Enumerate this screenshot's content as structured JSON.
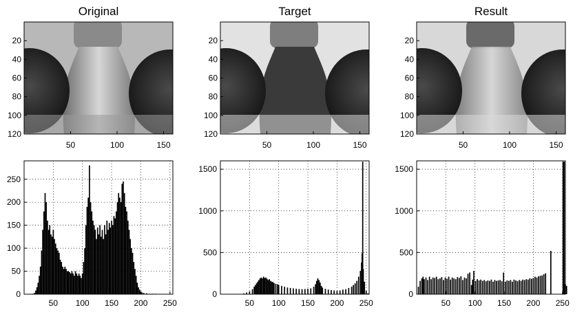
{
  "chart_data": [
    {
      "type": "image",
      "title": "Original",
      "image_size": [
        160,
        120
      ],
      "x_ticks": [
        50,
        100,
        150
      ],
      "y_ticks": [
        20,
        40,
        60,
        80,
        100,
        120
      ],
      "tone": "original"
    },
    {
      "type": "image",
      "title": "Target",
      "image_size": [
        160,
        120
      ],
      "x_ticks": [
        50,
        100,
        150
      ],
      "y_ticks": [
        20,
        40,
        60,
        80,
        100,
        120
      ],
      "tone": "target"
    },
    {
      "type": "image",
      "title": "Result",
      "image_size": [
        160,
        120
      ],
      "x_ticks": [
        50,
        100,
        150
      ],
      "y_ticks": [
        20,
        40,
        60,
        80,
        100,
        120
      ],
      "tone": "result"
    },
    {
      "type": "bar",
      "xlim": [
        0,
        255
      ],
      "ylim": [
        0,
        290
      ],
      "x_ticks": [
        50,
        100,
        150,
        200,
        250
      ],
      "y_ticks": [
        0,
        50,
        100,
        150,
        200,
        250
      ],
      "grid": true,
      "bins": [
        [
          15,
          1
        ],
        [
          18,
          3
        ],
        [
          20,
          8
        ],
        [
          22,
          15
        ],
        [
          24,
          25
        ],
        [
          26,
          40
        ],
        [
          28,
          60
        ],
        [
          30,
          95
        ],
        [
          32,
          140
        ],
        [
          34,
          180
        ],
        [
          36,
          220
        ],
        [
          38,
          200
        ],
        [
          40,
          160
        ],
        [
          42,
          140
        ],
        [
          44,
          150
        ],
        [
          46,
          130
        ],
        [
          48,
          125
        ],
        [
          50,
          140
        ],
        [
          52,
          120
        ],
        [
          54,
          110
        ],
        [
          56,
          100
        ],
        [
          58,
          95
        ],
        [
          60,
          90
        ],
        [
          62,
          75
        ],
        [
          64,
          70
        ],
        [
          66,
          60
        ],
        [
          68,
          55
        ],
        [
          70,
          60
        ],
        [
          72,
          55
        ],
        [
          74,
          50
        ],
        [
          76,
          50
        ],
        [
          78,
          48
        ],
        [
          80,
          45
        ],
        [
          82,
          50
        ],
        [
          84,
          45
        ],
        [
          86,
          40
        ],
        [
          88,
          50
        ],
        [
          90,
          45
        ],
        [
          92,
          40
        ],
        [
          94,
          45
        ],
        [
          96,
          40
        ],
        [
          98,
          35
        ],
        [
          100,
          45
        ],
        [
          102,
          70
        ],
        [
          104,
          100
        ],
        [
          106,
          150
        ],
        [
          108,
          190
        ],
        [
          110,
          210
        ],
        [
          112,
          280
        ],
        [
          114,
          200
        ],
        [
          116,
          180
        ],
        [
          118,
          160
        ],
        [
          120,
          150
        ],
        [
          122,
          140
        ],
        [
          124,
          120
        ],
        [
          126,
          145
        ],
        [
          128,
          130
        ],
        [
          130,
          150
        ],
        [
          132,
          125
        ],
        [
          134,
          140
        ],
        [
          136,
          120
        ],
        [
          138,
          150
        ],
        [
          140,
          130
        ],
        [
          142,
          160
        ],
        [
          144,
          140
        ],
        [
          146,
          155
        ],
        [
          148,
          145
        ],
        [
          150,
          160
        ],
        [
          152,
          150
        ],
        [
          154,
          170
        ],
        [
          156,
          165
        ],
        [
          158,
          180
        ],
        [
          160,
          200
        ],
        [
          162,
          220
        ],
        [
          164,
          210
        ],
        [
          166,
          200
        ],
        [
          168,
          240
        ],
        [
          170,
          245
        ],
        [
          172,
          220
        ],
        [
          174,
          190
        ],
        [
          176,
          180
        ],
        [
          178,
          160
        ],
        [
          180,
          140
        ],
        [
          182,
          120
        ],
        [
          184,
          100
        ],
        [
          186,
          90
        ],
        [
          188,
          70
        ],
        [
          190,
          55
        ],
        [
          192,
          40
        ],
        [
          194,
          25
        ],
        [
          196,
          15
        ],
        [
          198,
          10
        ],
        [
          200,
          6
        ],
        [
          202,
          4
        ],
        [
          205,
          3
        ],
        [
          210,
          2
        ],
        [
          215,
          1
        ],
        [
          220,
          1
        ],
        [
          225,
          1
        ]
      ]
    },
    {
      "type": "bar",
      "xlim": [
        0,
        255
      ],
      "ylim": [
        0,
        1600
      ],
      "x_ticks": [
        50,
        100,
        150,
        200,
        250
      ],
      "y_ticks": [
        0,
        500,
        1000,
        1500
      ],
      "grid": true,
      "bins": [
        [
          35,
          3
        ],
        [
          40,
          10
        ],
        [
          45,
          20
        ],
        [
          50,
          35
        ],
        [
          55,
          60
        ],
        [
          58,
          90
        ],
        [
          60,
          110
        ],
        [
          62,
          130
        ],
        [
          64,
          150
        ],
        [
          66,
          170
        ],
        [
          68,
          190
        ],
        [
          70,
          200
        ],
        [
          72,
          190
        ],
        [
          74,
          210
        ],
        [
          76,
          195
        ],
        [
          78,
          200
        ],
        [
          80,
          185
        ],
        [
          82,
          170
        ],
        [
          84,
          180
        ],
        [
          86,
          160
        ],
        [
          88,
          150
        ],
        [
          90,
          145
        ],
        [
          92,
          135
        ],
        [
          95,
          125
        ],
        [
          98,
          120
        ],
        [
          100,
          110
        ],
        [
          105,
          100
        ],
        [
          110,
          90
        ],
        [
          115,
          80
        ],
        [
          120,
          75
        ],
        [
          125,
          70
        ],
        [
          130,
          65
        ],
        [
          135,
          62
        ],
        [
          140,
          60
        ],
        [
          145,
          62
        ],
        [
          150,
          65
        ],
        [
          155,
          70
        ],
        [
          160,
          90
        ],
        [
          163,
          120
        ],
        [
          165,
          160
        ],
        [
          167,
          190
        ],
        [
          169,
          170
        ],
        [
          171,
          140
        ],
        [
          173,
          100
        ],
        [
          175,
          80
        ],
        [
          180,
          65
        ],
        [
          185,
          55
        ],
        [
          190,
          50
        ],
        [
          195,
          45
        ],
        [
          200,
          40
        ],
        [
          205,
          45
        ],
        [
          210,
          55
        ],
        [
          215,
          60
        ],
        [
          220,
          75
        ],
        [
          225,
          90
        ],
        [
          228,
          110
        ],
        [
          231,
          130
        ],
        [
          234,
          160
        ],
        [
          237,
          210
        ],
        [
          240,
          280
        ],
        [
          242,
          380
        ],
        [
          243,
          490
        ],
        [
          244,
          1590
        ],
        [
          245,
          300
        ],
        [
          247,
          150
        ],
        [
          250,
          40
        ],
        [
          253,
          10
        ]
      ]
    },
    {
      "type": "bar",
      "xlim": [
        0,
        255
      ],
      "ylim": [
        0,
        1600
      ],
      "x_ticks": [
        50,
        100,
        150,
        200,
        250
      ],
      "y_ticks": [
        0,
        500,
        1000,
        1500
      ],
      "grid": true,
      "bins": [
        [
          3,
          90
        ],
        [
          6,
          160
        ],
        [
          9,
          190
        ],
        [
          11,
          210
        ],
        [
          13,
          180
        ],
        [
          16,
          200
        ],
        [
          19,
          170
        ],
        [
          22,
          210
        ],
        [
          25,
          180
        ],
        [
          28,
          200
        ],
        [
          31,
          195
        ],
        [
          34,
          210
        ],
        [
          37,
          180
        ],
        [
          40,
          190
        ],
        [
          43,
          205
        ],
        [
          46,
          170
        ],
        [
          49,
          200
        ],
        [
          52,
          185
        ],
        [
          55,
          210
        ],
        [
          58,
          175
        ],
        [
          61,
          200
        ],
        [
          64,
          190
        ],
        [
          67,
          180
        ],
        [
          70,
          205
        ],
        [
          73,
          195
        ],
        [
          76,
          215
        ],
        [
          79,
          170
        ],
        [
          82,
          200
        ],
        [
          85,
          190
        ],
        [
          88,
          245
        ],
        [
          91,
          260
        ],
        [
          94,
          110
        ],
        [
          96,
          175
        ],
        [
          98,
          280
        ],
        [
          101,
          160
        ],
        [
          104,
          180
        ],
        [
          107,
          165
        ],
        [
          110,
          175
        ],
        [
          113,
          160
        ],
        [
          116,
          170
        ],
        [
          119,
          155
        ],
        [
          122,
          165
        ],
        [
          125,
          160
        ],
        [
          128,
          175
        ],
        [
          131,
          150
        ],
        [
          134,
          170
        ],
        [
          137,
          160
        ],
        [
          140,
          165
        ],
        [
          143,
          170
        ],
        [
          146,
          155
        ],
        [
          149,
          260
        ],
        [
          152,
          150
        ],
        [
          155,
          165
        ],
        [
          158,
          160
        ],
        [
          161,
          170
        ],
        [
          164,
          150
        ],
        [
          167,
          175
        ],
        [
          170,
          165
        ],
        [
          173,
          155
        ],
        [
          176,
          170
        ],
        [
          179,
          160
        ],
        [
          182,
          175
        ],
        [
          185,
          170
        ],
        [
          188,
          180
        ],
        [
          191,
          175
        ],
        [
          194,
          190
        ],
        [
          197,
          185
        ],
        [
          200,
          195
        ],
        [
          203,
          210
        ],
        [
          206,
          200
        ],
        [
          209,
          215
        ],
        [
          212,
          220
        ],
        [
          215,
          225
        ],
        [
          218,
          240
        ],
        [
          221,
          250
        ],
        [
          230,
          520
        ],
        [
          251,
          1590
        ],
        [
          253,
          1590
        ],
        [
          255,
          120
        ],
        [
          257,
          100
        ]
      ]
    }
  ]
}
